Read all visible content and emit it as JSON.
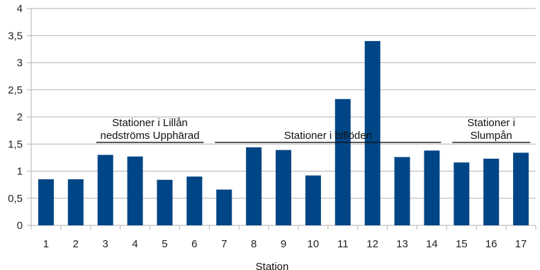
{
  "chart_data": {
    "type": "bar",
    "title": "",
    "xlabel": "Station",
    "ylabel": "",
    "ylim": [
      0,
      4
    ],
    "yticks": [
      "0",
      "0,5",
      "1",
      "1,5",
      "2",
      "2,5",
      "3",
      "3,5",
      "4"
    ],
    "grid": true,
    "bar_color": "#004586",
    "categories": [
      "1",
      "2",
      "3",
      "4",
      "5",
      "6",
      "7",
      "8",
      "9",
      "10",
      "11",
      "12",
      "13",
      "14",
      "15",
      "16",
      "17"
    ],
    "values": [
      0.85,
      0.85,
      1.3,
      1.27,
      0.84,
      0.9,
      0.66,
      1.44,
      1.39,
      0.92,
      2.33,
      3.4,
      1.26,
      1.38,
      1.16,
      1.23,
      1.34
    ],
    "annotations": [
      {
        "lines": [
          "Stationer i Lillån",
          "nedströms Upphärad"
        ],
        "from": 3,
        "to": 6
      },
      {
        "lines": [
          "Stationer i biflöden"
        ],
        "from": 7,
        "to": 14
      },
      {
        "lines": [
          "Stationer i",
          "Slumpån"
        ],
        "from": 15,
        "to": 17
      }
    ]
  }
}
